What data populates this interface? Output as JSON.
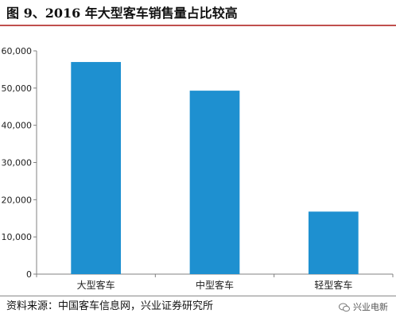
{
  "title": "图 9、2016 年大型客车销售量占比较高",
  "source": "资料来源：中国客车信息网，兴业证券研究所",
  "watermark": "兴业电新",
  "colors": {
    "bar": "#1e90d0",
    "axis": "#808080",
    "rule": "#c0504d"
  },
  "chart_data": {
    "type": "bar",
    "title": "图 9、2016 年大型客车销售量占比较高",
    "xlabel": "",
    "ylabel": "",
    "categories": [
      "大型客车",
      "中型客车",
      "轻型客车"
    ],
    "values": [
      57000,
      49300,
      16800
    ],
    "ylim": [
      0,
      60000
    ],
    "yticks": [
      0,
      10000,
      20000,
      30000,
      40000,
      50000,
      60000
    ],
    "ytick_labels": [
      "0",
      "10,000",
      "20,000",
      "30,000",
      "40,000",
      "50,000",
      "60,000"
    ],
    "grid": false,
    "legend": "none"
  }
}
